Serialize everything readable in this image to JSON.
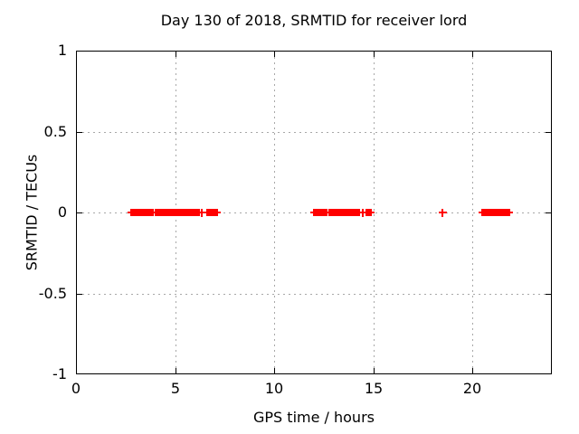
{
  "chart_data": {
    "type": "scatter",
    "title": "Day 130 of 2018, SRMTID for receiver lord",
    "xlabel": "GPS time / hours",
    "ylabel": "SRMTID / TECUs",
    "xlim": [
      0,
      24
    ],
    "ylim": [
      -1,
      1
    ],
    "xticks": [
      0,
      5,
      10,
      15,
      20
    ],
    "xtick_labels": [
      "0",
      "5",
      "10",
      "15",
      "20"
    ],
    "yticks": [
      1,
      0.5,
      0,
      -0.5,
      -1
    ],
    "ytick_labels": [
      "1",
      "0.5",
      "0",
      "-0.5",
      "-1"
    ],
    "grid": true,
    "legend": "none",
    "series": [
      {
        "name": "SRMTID",
        "marker": "plus",
        "color": "#ff0000",
        "y_value": 0,
        "segments_hours": [
          [
            2.78,
            3.9
          ],
          [
            4.02,
            6.19
          ],
          [
            6.6,
            7.1
          ],
          [
            11.98,
            12.66
          ],
          [
            12.78,
            13.49
          ],
          [
            13.6,
            14.27
          ],
          [
            14.63,
            14.86
          ],
          [
            20.5,
            21.85
          ]
        ],
        "isolated_points_hours": [
          6.32,
          14.45,
          18.5
        ]
      }
    ]
  },
  "colors": {
    "marker": "#ff0000",
    "grid": "#a8a8a8",
    "axis": "#000000",
    "background": "#ffffff",
    "text": "#000000"
  }
}
